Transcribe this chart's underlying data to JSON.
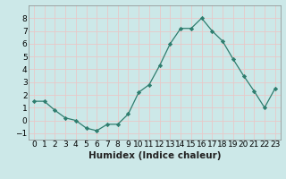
{
  "x": [
    0,
    1,
    2,
    3,
    4,
    5,
    6,
    7,
    8,
    9,
    10,
    11,
    12,
    13,
    14,
    15,
    16,
    17,
    18,
    19,
    20,
    21,
    22,
    23
  ],
  "y": [
    1.5,
    1.5,
    0.8,
    0.2,
    0.0,
    -0.6,
    -0.8,
    -0.3,
    -0.3,
    0.5,
    2.2,
    2.8,
    4.3,
    6.0,
    7.2,
    7.2,
    8.0,
    7.0,
    6.2,
    4.8,
    3.5,
    2.3,
    1.0,
    2.5
  ],
  "xlabel": "Humidex (Indice chaleur)",
  "ylim": [
    -1.5,
    9.0
  ],
  "xlim": [
    -0.5,
    23.5
  ],
  "line_color": "#2e7d6e",
  "marker": "D",
  "bg_color": "#cce8e8",
  "grid_color_major": "#e8c8c8",
  "tick_label_fontsize": 6.5,
  "xlabel_fontsize": 7.5,
  "yticks": [
    -1,
    0,
    1,
    2,
    3,
    4,
    5,
    6,
    7,
    8
  ],
  "xtick_labels": [
    "0",
    "1",
    "2",
    "3",
    "4",
    "5",
    "6",
    "7",
    "8",
    "9",
    "10",
    "11",
    "12",
    "13",
    "14",
    "15",
    "16",
    "17",
    "18",
    "19",
    "20",
    "21",
    "22",
    "23"
  ]
}
